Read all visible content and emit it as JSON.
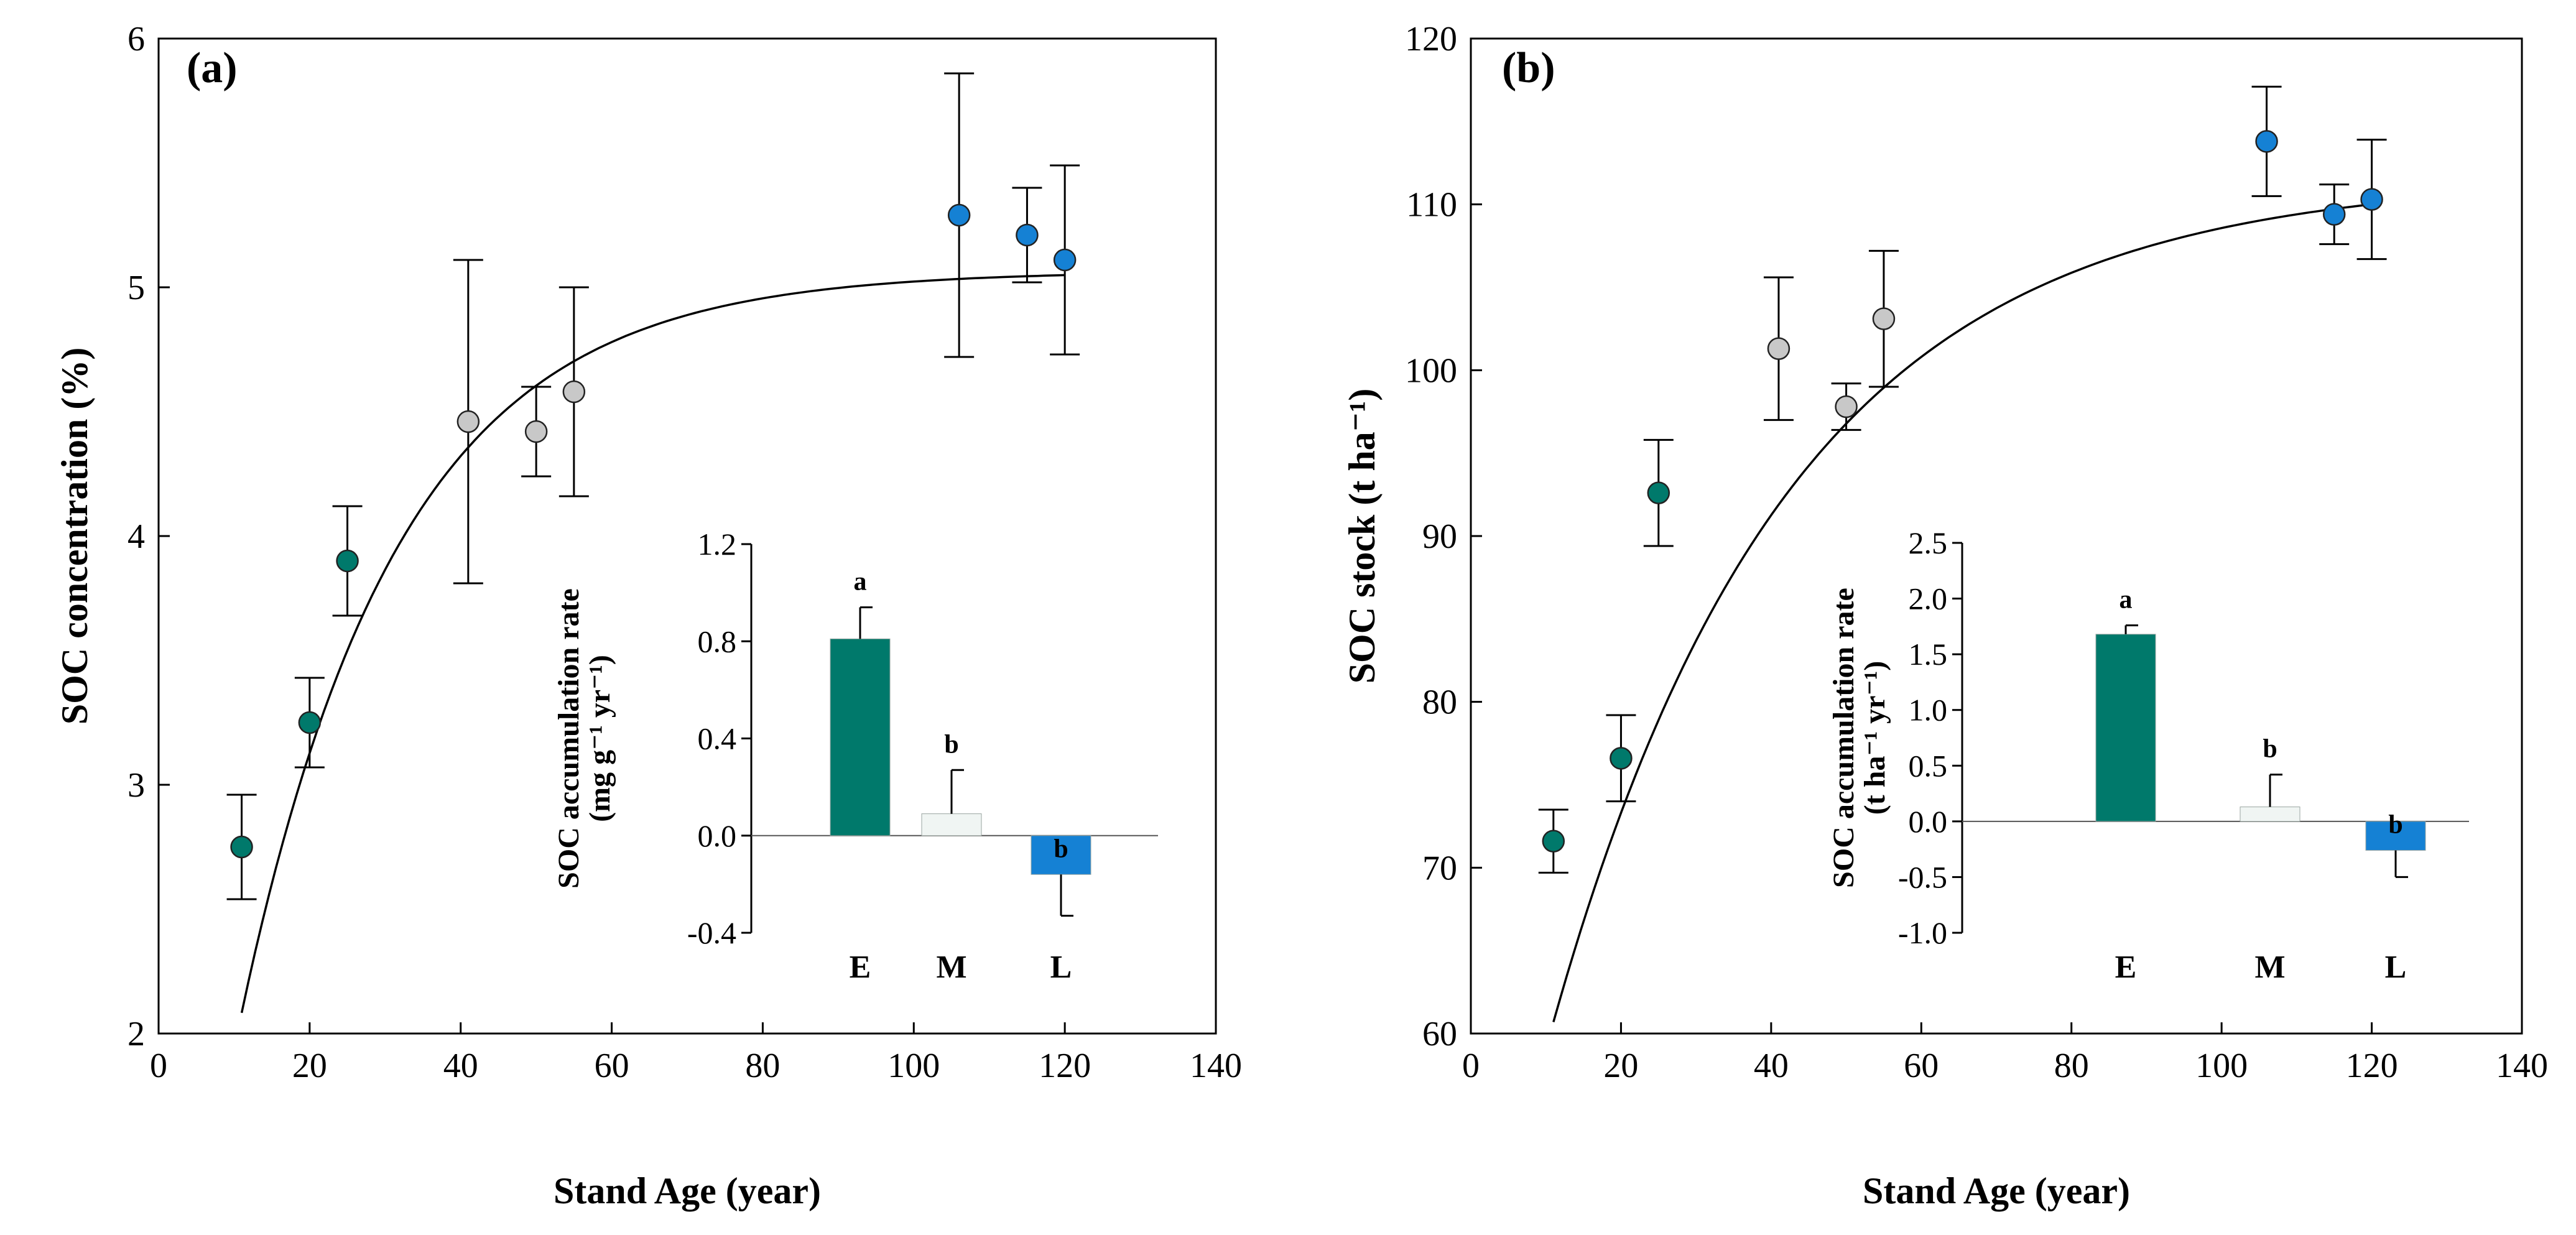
{
  "colors": {
    "early": "#00796B",
    "mid": "#C8C8C8",
    "late": "#1581D4",
    "mid_bar": "#F0F5F3",
    "axis": "#000000"
  },
  "chart_data": [
    {
      "id": "a",
      "type": "scatter",
      "panel_label": "(a)",
      "xlabel": "Stand Age (year)",
      "ylabel": "SOC concentration (%)",
      "xlim": [
        0,
        140
      ],
      "ylim": [
        2,
        6
      ],
      "xticks": [
        0,
        20,
        40,
        60,
        80,
        100,
        120,
        140
      ],
      "yticks": [
        2,
        3,
        4,
        5,
        6
      ],
      "grid": false,
      "points": [
        {
          "x": 11,
          "y": 2.75,
          "err": 0.21,
          "group": "early"
        },
        {
          "x": 20,
          "y": 3.25,
          "err": 0.18,
          "group": "early"
        },
        {
          "x": 25,
          "y": 3.9,
          "err": 0.22,
          "group": "early"
        },
        {
          "x": 41,
          "y": 4.46,
          "err": 0.65,
          "group": "mid"
        },
        {
          "x": 50,
          "y": 4.42,
          "err": 0.18,
          "group": "mid"
        },
        {
          "x": 55,
          "y": 4.58,
          "err": 0.42,
          "group": "mid"
        },
        {
          "x": 106,
          "y": 5.29,
          "err": 0.57,
          "group": "late"
        },
        {
          "x": 115,
          "y": 5.21,
          "err": 0.19,
          "group": "late"
        },
        {
          "x": 120,
          "y": 5.11,
          "err": 0.38,
          "group": "late"
        }
      ],
      "fit": {
        "model": "y = a - b*exp(-k*x)",
        "a": 5.065,
        "b": 5.05,
        "k": 0.0479,
        "x_from": 11,
        "x_to": 120
      },
      "inset": {
        "type": "bar",
        "ylabel_line1": "SOC accumulation rate",
        "ylabel_line2": "(mg g⁻¹ yr⁻¹)",
        "ylim": [
          -0.4,
          1.2
        ],
        "yticks": [
          "-0.4",
          "0.0",
          "0.4",
          "0.8",
          "1.2"
        ],
        "ytick_values": [
          -0.4,
          0.0,
          0.4,
          0.8,
          1.2
        ],
        "categories": [
          "E",
          "M",
          "L"
        ],
        "values": [
          0.81,
          0.09,
          -0.16
        ],
        "errors": [
          0.13,
          0.18,
          0.17
        ],
        "letters": [
          "a",
          "b",
          "b"
        ]
      }
    },
    {
      "id": "b",
      "type": "scatter",
      "panel_label": "(b)",
      "xlabel": "Stand Age (year)",
      "ylabel": "SOC stock (t ha⁻¹)",
      "xlim": [
        0,
        140
      ],
      "ylim": [
        60,
        120
      ],
      "xticks": [
        0,
        20,
        40,
        60,
        80,
        100,
        120,
        140
      ],
      "yticks": [
        60,
        70,
        80,
        90,
        100,
        110,
        120
      ],
      "grid": false,
      "points": [
        {
          "x": 11,
          "y": 71.6,
          "err": 1.9,
          "group": "early"
        },
        {
          "x": 20,
          "y": 76.6,
          "err": 2.6,
          "group": "early"
        },
        {
          "x": 25,
          "y": 92.6,
          "err": 3.2,
          "group": "early"
        },
        {
          "x": 41,
          "y": 101.3,
          "err": 4.3,
          "group": "mid"
        },
        {
          "x": 50,
          "y": 97.8,
          "err": 1.4,
          "group": "mid"
        },
        {
          "x": 55,
          "y": 103.1,
          "err": 4.1,
          "group": "mid"
        },
        {
          "x": 106,
          "y": 113.8,
          "err": 3.3,
          "group": "late"
        },
        {
          "x": 115,
          "y": 109.4,
          "err": 1.8,
          "group": "late"
        },
        {
          "x": 120,
          "y": 110.3,
          "err": 3.6,
          "group": "late"
        }
      ],
      "fit": {
        "model": "y = a - b*exp(-k*x)",
        "a": 111.63,
        "b": 72.11,
        "k": 0.0316,
        "x_from": 11,
        "x_to": 120
      },
      "inset": {
        "type": "bar",
        "ylabel_line1": "SOC accumulation rate",
        "ylabel_line2": "(t ha⁻¹ yr⁻¹)",
        "ylim": [
          -1.0,
          2.5
        ],
        "yticks": [
          "-1.0",
          "-0.5",
          "0.0",
          "0.5",
          "1.0",
          "1.5",
          "2.0",
          "2.5"
        ],
        "ytick_values": [
          -1.0,
          -0.5,
          0.0,
          0.5,
          1.0,
          1.5,
          2.0,
          2.5
        ],
        "categories": [
          "E",
          "M",
          "L"
        ],
        "values": [
          1.68,
          0.13,
          -0.26
        ],
        "errors": [
          0.08,
          0.29,
          0.24
        ],
        "letters": [
          "a",
          "b",
          "b"
        ]
      }
    }
  ]
}
